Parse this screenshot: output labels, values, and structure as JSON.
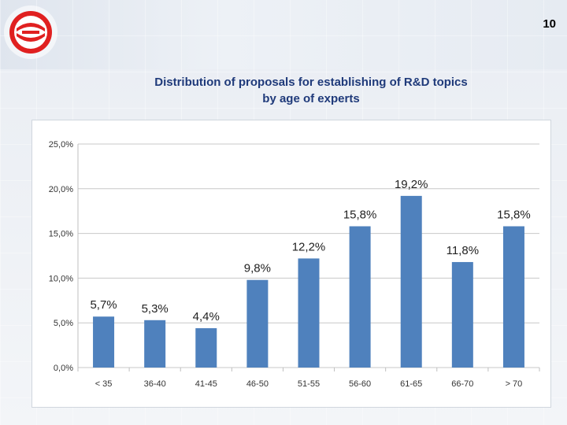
{
  "page": {
    "number": "10",
    "title_line1": "Distribution of proposals for establishing of R&D topics",
    "title_line2": "by age of experts"
  },
  "colors": {
    "bar": "#4f81bd",
    "grid": "#c8c8c8",
    "title": "#1f3a7a",
    "logo_red": "#e02020"
  },
  "chart_data": {
    "type": "bar",
    "title": "",
    "xlabel": "",
    "ylabel": "",
    "categories": [
      "< 35",
      "36-40",
      "41-45",
      "46-50",
      "51-55",
      "56-60",
      "61-65",
      "66-70",
      "> 70"
    ],
    "values": [
      5.7,
      5.3,
      4.4,
      9.8,
      12.2,
      15.8,
      19.2,
      11.8,
      15.8
    ],
    "data_labels": [
      "5,7%",
      "5,3%",
      "4,4%",
      "9,8%",
      "12,2%",
      "15,8%",
      "19,2%",
      "11,8%",
      "15,8%"
    ],
    "ylim": [
      0,
      25
    ],
    "yticks": [
      0,
      5,
      10,
      15,
      20,
      25
    ],
    "ytick_labels": [
      "0,0%",
      "5,0%",
      "10,0%",
      "15,0%",
      "20,0%",
      "25,0%"
    ],
    "grid": true,
    "legend": "none"
  }
}
